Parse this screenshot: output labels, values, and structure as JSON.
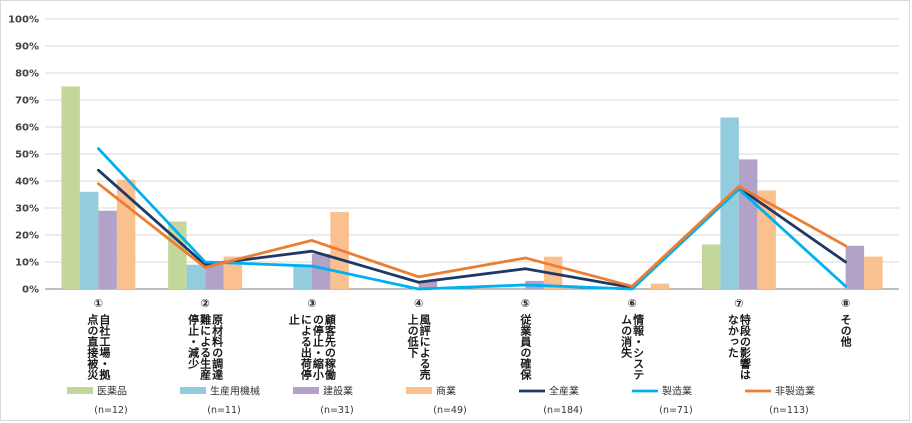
{
  "chart_data": {
    "type": "bar",
    "title": "",
    "xlabel": "",
    "ylabel": "",
    "ylim": [
      0,
      100
    ],
    "yticks": [
      "0%",
      "10%",
      "20%",
      "30%",
      "40%",
      "50%",
      "60%",
      "70%",
      "80%",
      "90%",
      "100%"
    ],
    "categories": [
      {
        "num": "①",
        "lines": [
          "自社工場・拠",
          "点の直接被災"
        ]
      },
      {
        "num": "②",
        "lines": [
          "原材料の調達",
          "難による生産",
          "停止・減少"
        ]
      },
      {
        "num": "③",
        "lines": [
          "顧客先の稼働",
          "の停止・縮小",
          "による出荷停",
          "止"
        ]
      },
      {
        "num": "④",
        "lines": [
          "風評による売",
          "上の低下"
        ]
      },
      {
        "num": "⑤",
        "lines": [
          "従業員の確保"
        ]
      },
      {
        "num": "⑥",
        "lines": [
          "情報・システ",
          "ムの消失"
        ]
      },
      {
        "num": "⑦",
        "lines": [
          "特段の影響は",
          "なかった"
        ]
      },
      {
        "num": "⑧",
        "lines": [
          "その他"
        ]
      }
    ],
    "bar_series": [
      {
        "name": "医薬品",
        "n": "(n=12)",
        "color": "#c3d69b",
        "values": [
          75,
          25,
          0,
          0,
          0,
          0,
          16.5,
          0
        ]
      },
      {
        "name": "生産用機械",
        "n": "(n=11)",
        "color": "#93cddd",
        "values": [
          36,
          9,
          9,
          0,
          0,
          0,
          63.5,
          0
        ]
      },
      {
        "name": "建設業",
        "n": "(n=31)",
        "color": "#b3a2c7",
        "values": [
          29,
          9.5,
          13,
          3,
          3,
          0,
          48,
          16
        ]
      },
      {
        "name": "商業",
        "n": "(n=49)",
        "color": "#fac090",
        "values": [
          40.5,
          12,
          28.5,
          0,
          12,
          2,
          36.5,
          12
        ]
      }
    ],
    "line_series": [
      {
        "name": "全産業",
        "n": "(n=184)",
        "color": "#1f3864",
        "values": [
          44,
          9,
          14,
          2.5,
          7.5,
          0.5,
          37.5,
          10
        ]
      },
      {
        "name": "製造業",
        "n": "(n=71)",
        "color": "#00b0f0",
        "values": [
          52,
          10,
          8.5,
          0,
          1.5,
          0,
          37,
          1
        ]
      },
      {
        "name": "非製造業",
        "n": "(n=113)",
        "color": "#ed7d31",
        "values": [
          39,
          8,
          18,
          4.5,
          11.5,
          1,
          38,
          16
        ]
      }
    ]
  }
}
